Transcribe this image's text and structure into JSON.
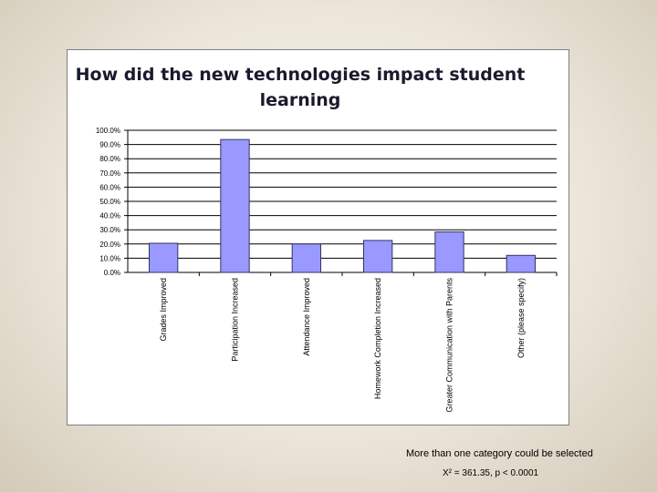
{
  "chart_data": {
    "type": "bar",
    "title": "How did the new technologies impact student learning",
    "categories": [
      "Grades Improved",
      "Participation Increased",
      "Attendance Improved",
      "Homework Completion Increased",
      "Greater Communication with Parents",
      "Other (please specify)"
    ],
    "values": [
      20.5,
      93.5,
      20.0,
      22.5,
      28.5,
      12.0
    ],
    "y_ticks": [
      "0.0%",
      "10.0%",
      "20.0%",
      "30.0%",
      "40.0%",
      "50.0%",
      "60.0%",
      "70.0%",
      "80.0%",
      "90.0%",
      "100.0%"
    ],
    "ylim": [
      0,
      100
    ],
    "y_unit": "%",
    "xlabel": "",
    "ylabel": "",
    "grid": true,
    "bar_color": "#9999ff",
    "legend": "none"
  },
  "footnote": "More than one category could be selected",
  "statistic": "Χ² = 361.35, p < 0.0001"
}
